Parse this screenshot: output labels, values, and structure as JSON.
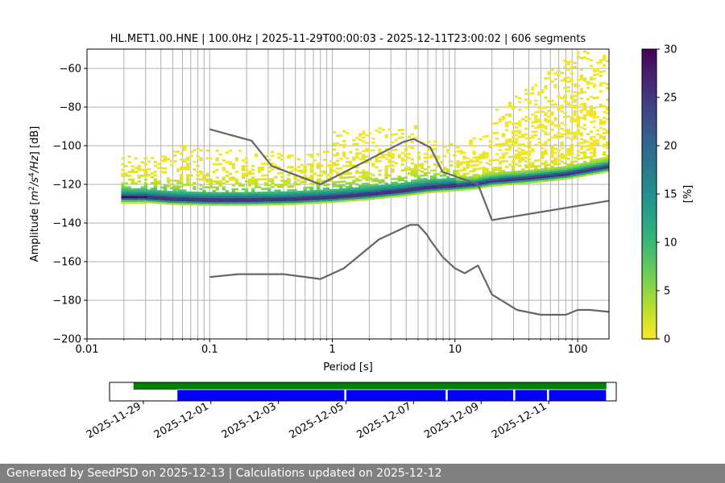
{
  "chart_data": [
    {
      "type": "heatmap",
      "title": "HL.MET1.00.HNE | 100.0Hz | 2025-11-29T00:00:03 - 2025-12-11T23:00:02 | 606 segments",
      "xlabel": "Period [s]",
      "ylabel_parts": [
        "Amplitude [",
        "m",
        "2",
        "/",
        "s",
        "4",
        "/",
        "Hz",
        "] [dB]"
      ],
      "xscale": "log",
      "xlim": [
        0.01,
        180
      ],
      "ylim": [
        -200,
        -50
      ],
      "xticks": [
        {
          "value": 0.01,
          "label": "0.01"
        },
        {
          "value": 0.1,
          "label": "0.1"
        },
        {
          "value": 1,
          "label": "1"
        },
        {
          "value": 10,
          "label": "10"
        },
        {
          "value": 100,
          "label": "100"
        }
      ],
      "yticks": [
        {
          "value": -60,
          "label": "−60"
        },
        {
          "value": -80,
          "label": "−80"
        },
        {
          "value": -100,
          "label": "−100"
        },
        {
          "value": -120,
          "label": "−120"
        },
        {
          "value": -140,
          "label": "−140"
        },
        {
          "value": -160,
          "label": "−160"
        },
        {
          "value": -180,
          "label": "−180"
        },
        {
          "value": -200,
          "label": "−200"
        }
      ],
      "grid": true,
      "colorbar": {
        "label": "[%]",
        "range": [
          0,
          30
        ],
        "ticks": [
          {
            "value": 0,
            "label": "0"
          },
          {
            "value": 5,
            "label": "5"
          },
          {
            "value": 10,
            "label": "10"
          },
          {
            "value": 15,
            "label": "15"
          },
          {
            "value": 20,
            "label": "20"
          },
          {
            "value": 25,
            "label": "25"
          },
          {
            "value": 30,
            "label": "30"
          }
        ],
        "colormap": "viridis_r"
      },
      "mode_line": {
        "x": [
          0.03,
          0.05,
          0.1,
          0.2,
          0.5,
          1,
          2,
          4,
          6,
          10,
          15,
          20,
          40,
          80,
          180
        ],
        "y": [
          -127,
          -128,
          -128.5,
          -128.5,
          -128,
          -127,
          -125.5,
          -123.5,
          -122,
          -121,
          -120,
          -118.5,
          -117,
          -115,
          -111
        ]
      },
      "series": [
        {
          "x": [
            0.1,
            0.22,
            0.32,
            0.8,
            3.8,
            4.6,
            6.3,
            7.9,
            15.4,
            20,
            180
          ],
          "y": [
            -91.5,
            -97.4,
            -110.5,
            -120,
            -98,
            -96.5,
            -101,
            -113.5,
            -120,
            -138.5,
            -128.5
          ]
        },
        {
          "x": [
            0.1,
            0.17,
            0.4,
            0.8,
            1.24,
            2.4,
            4.3,
            5,
            5.9,
            6.3,
            7.9,
            10,
            12,
            15.4,
            20,
            32,
            50,
            80,
            100,
            126,
            180
          ],
          "y": [
            -168,
            -166.5,
            -166.5,
            -169,
            -163.5,
            -148.5,
            -141,
            -141,
            -146,
            -149,
            -157.5,
            -163.5,
            -166,
            -162,
            -177,
            -185,
            -187.5,
            -187.5,
            -185,
            -185,
            -186
          ]
        }
      ]
    },
    {
      "type": "timeline",
      "xlim": [
        "2025-11-28",
        "2025-12-13"
      ],
      "xticks": [
        "2025-11-29",
        "2025-12-01",
        "2025-12-03",
        "2025-12-05",
        "2025-12-07",
        "2025-12-09",
        "2025-12-11"
      ],
      "bars": [
        {
          "row": "top",
          "color": "#008000",
          "segments": [
            [
              "2025-11-28T17:00",
              "2025-12-12T17:00"
            ]
          ]
        },
        {
          "row": "bottom",
          "color": "#0000ff",
          "segments": [
            [
              "2025-11-30T00:00",
              "2025-12-04T23:00"
            ],
            [
              "2025-12-05T00:00",
              "2025-12-07T23:00"
            ],
            [
              "2025-12-08T00:00",
              "2025-12-09T23:00"
            ],
            [
              "2025-12-10T00:00",
              "2025-12-10T23:00"
            ],
            [
              "2025-12-11T00:00",
              "2025-12-12T17:00"
            ]
          ]
        }
      ]
    }
  ],
  "footer": {
    "text": "Generated by SeedPSD on 2025-12-13 | Calculations updated on 2025-12-12"
  }
}
